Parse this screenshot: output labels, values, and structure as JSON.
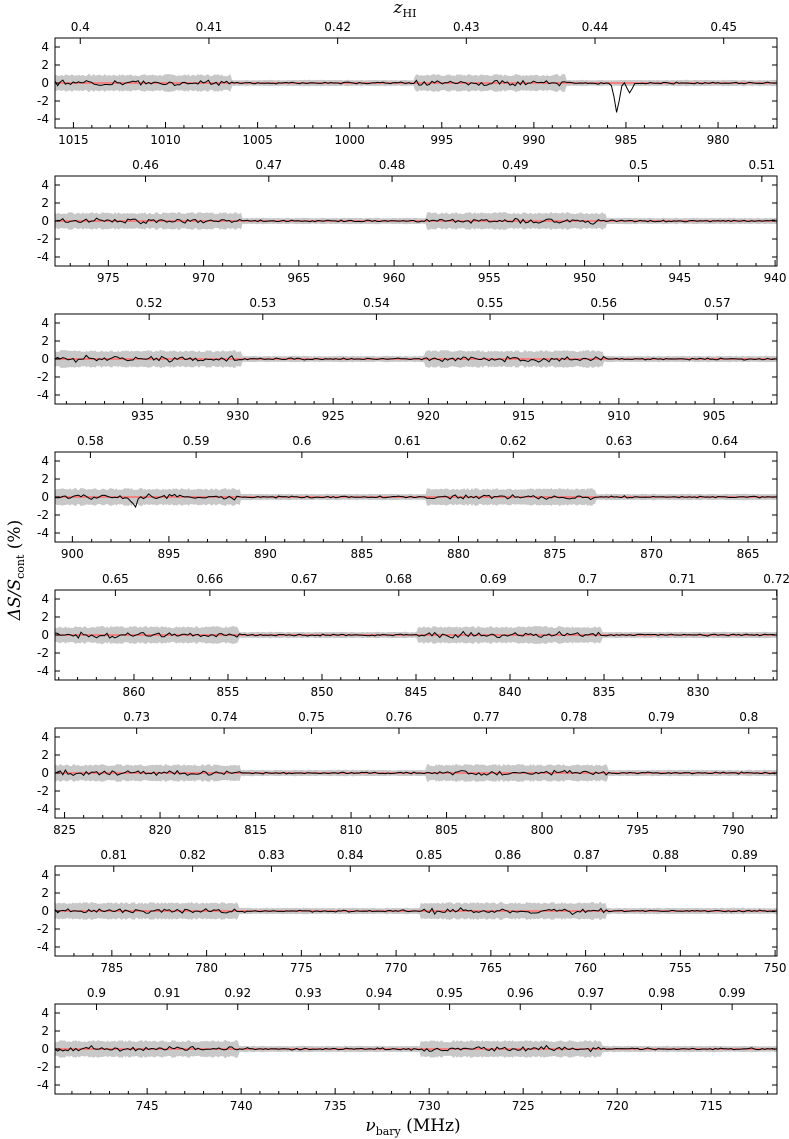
{
  "chart_data": {
    "type": "line",
    "top_axis_label_main": "z",
    "top_axis_label_sub": "HI",
    "ylabel_main": "ΔS/S",
    "ylabel_sub": "cont",
    "ylabel_unit": " (%)",
    "xlabel_main": "ν",
    "xlabel_sub": "bary",
    "xlabel_unit": " (MHz)",
    "ylim": [
      -5,
      5
    ],
    "y_ticks": [
      4,
      2,
      0,
      -2,
      -4
    ],
    "colors": {
      "noise_band": "#c8c8c8",
      "model": "#ff6a6a",
      "spectrum": "#000000"
    },
    "panels": [
      {
        "x_range": [
          1016.0,
          976.8
        ],
        "freq_ticks": [
          1015,
          1010,
          1005,
          1000,
          995,
          990,
          985,
          980
        ],
        "z_ticks": [
          "0.4",
          "0.41",
          "0.42",
          "0.43",
          "0.44",
          "0.45"
        ],
        "noisy_segments": [
          [
            1016.0,
            1006.4
          ],
          [
            996.5,
            988.3
          ]
        ],
        "features": [
          {
            "freq": 985.5,
            "depth": -3.2
          },
          {
            "freq": 984.8,
            "depth": -1.1
          }
        ]
      },
      {
        "x_range": [
          977.8,
          939.9
        ],
        "freq_ticks": [
          975,
          970,
          965,
          960,
          955,
          950,
          945,
          940
        ],
        "z_ticks": [
          "0.46",
          "0.47",
          "0.48",
          "0.49",
          "0.5",
          "0.51"
        ],
        "noisy_segments": [
          [
            977.8,
            968.0
          ],
          [
            958.3,
            948.9
          ]
        ],
        "features": []
      },
      {
        "x_range": [
          939.6,
          901.7
        ],
        "freq_ticks": [
          935,
          930,
          925,
          920,
          915,
          910,
          905
        ],
        "z_ticks": [
          "0.52",
          "0.53",
          "0.54",
          "0.55",
          "0.56",
          "0.57"
        ],
        "noisy_segments": [
          [
            939.6,
            929.8
          ],
          [
            920.2,
            910.8
          ]
        ],
        "features": []
      },
      {
        "x_range": [
          900.9,
          863.5
        ],
        "freq_ticks": [
          900,
          895,
          890,
          885,
          880,
          875,
          870,
          865
        ],
        "z_ticks": [
          "0.58",
          "0.59",
          "0.6",
          "0.61",
          "0.62",
          "0.63",
          "0.64"
        ],
        "noisy_segments": [
          [
            900.9,
            891.3
          ],
          [
            881.7,
            872.9
          ]
        ],
        "features": [
          {
            "freq": 896.8,
            "depth": -1.0
          }
        ]
      },
      {
        "x_range": [
          864.2,
          825.8
        ],
        "freq_ticks": [
          860,
          855,
          850,
          845,
          840,
          835,
          830
        ],
        "z_ticks": [
          "0.65",
          "0.66",
          "0.67",
          "0.68",
          "0.69",
          "0.7",
          "0.71",
          "0.72"
        ],
        "noisy_segments": [
          [
            864.2,
            854.4
          ],
          [
            844.9,
            835.1
          ]
        ],
        "features": []
      },
      {
        "x_range": [
          825.5,
          787.7
        ],
        "freq_ticks": [
          825,
          820,
          815,
          810,
          805,
          800,
          795,
          790
        ],
        "z_ticks": [
          "0.73",
          "0.74",
          "0.75",
          "0.76",
          "0.77",
          "0.78",
          "0.79",
          "0.8"
        ],
        "noisy_segments": [
          [
            825.5,
            815.8
          ],
          [
            806.1,
            796.6
          ]
        ],
        "features": []
      },
      {
        "x_range": [
          788.0,
          749.9
        ],
        "freq_ticks": [
          785,
          780,
          775,
          770,
          765,
          760,
          755,
          750
        ],
        "z_ticks": [
          "0.81",
          "0.82",
          "0.83",
          "0.84",
          "0.85",
          "0.86",
          "0.87",
          "0.88",
          "0.89"
        ],
        "noisy_segments": [
          [
            788.0,
            778.3
          ],
          [
            768.7,
            758.9
          ]
        ],
        "features": []
      },
      {
        "x_range": [
          749.9,
          711.5
        ],
        "freq_ticks": [
          745,
          740,
          735,
          730,
          725,
          720,
          715
        ],
        "z_ticks": [
          "0.9",
          "0.91",
          "0.92",
          "0.93",
          "0.94",
          "0.95",
          "0.96",
          "0.97",
          "0.98",
          "0.99"
        ],
        "noisy_segments": [
          [
            749.9,
            740.1
          ],
          [
            730.5,
            720.8
          ]
        ],
        "features": []
      }
    ]
  }
}
